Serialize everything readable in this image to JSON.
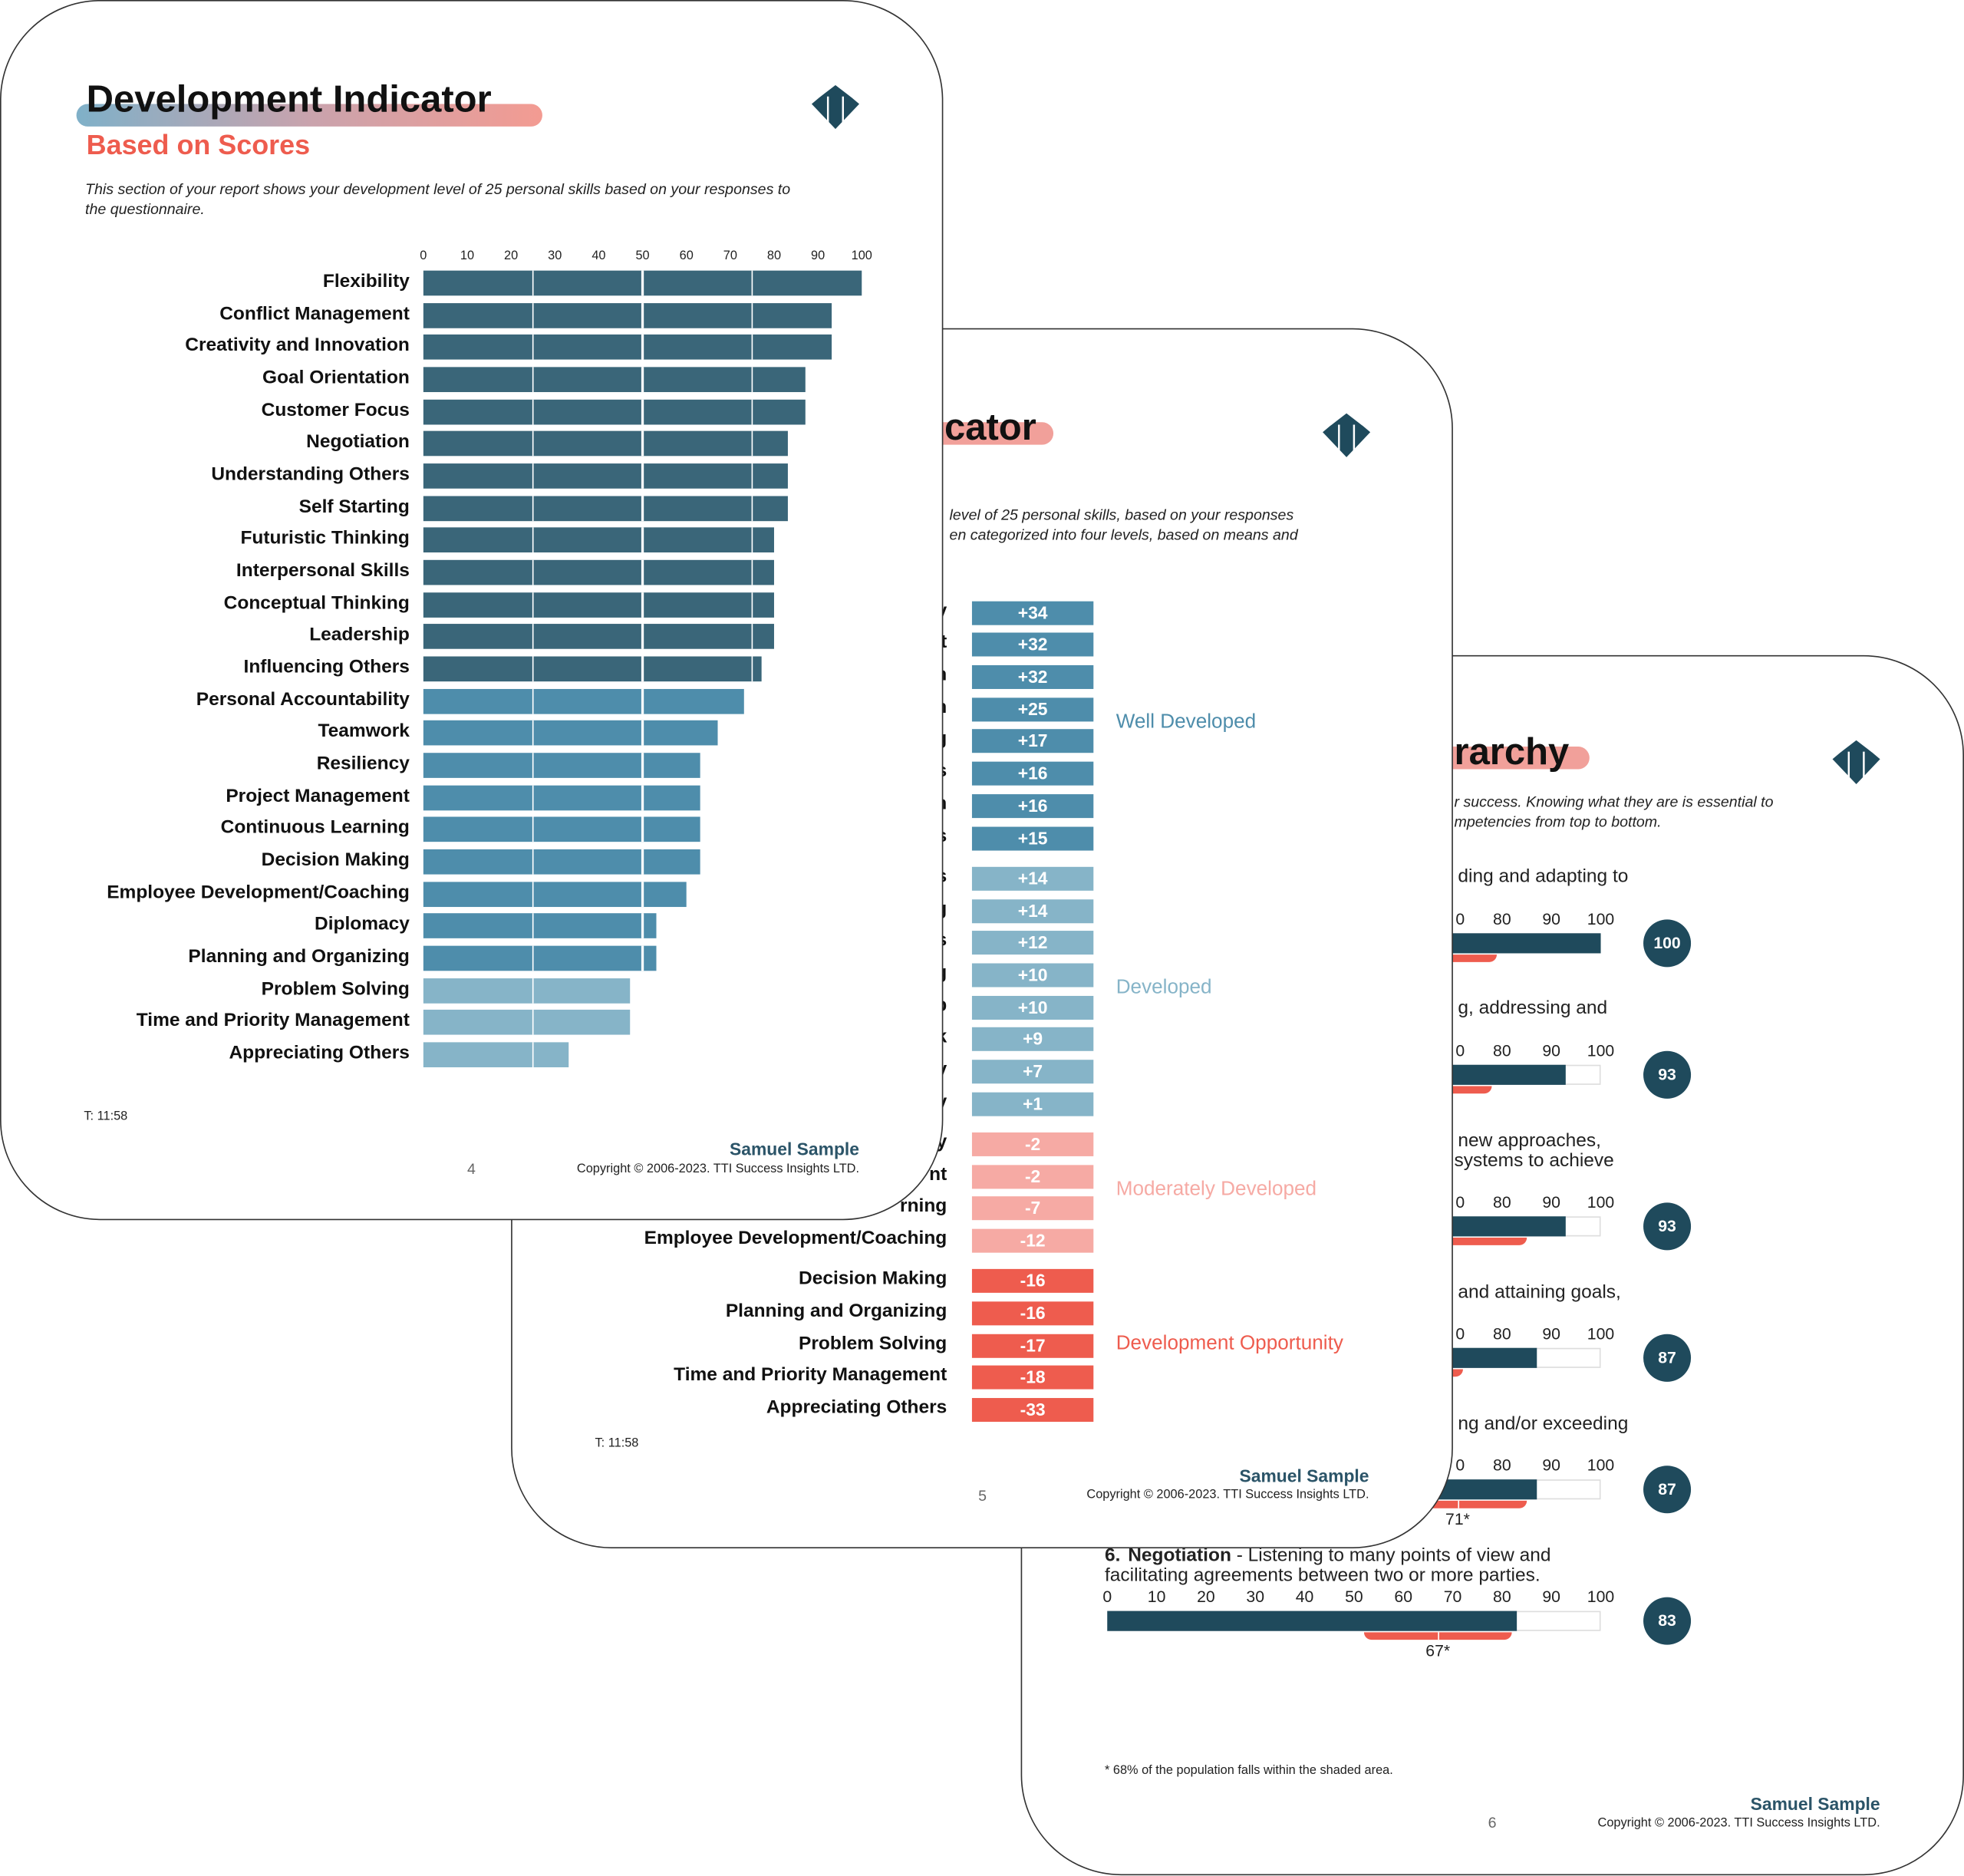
{
  "colors": {
    "dark": "#3a6679",
    "mid": "#4e8dab",
    "light": "#86b4c8",
    "accent_red": "#ee5c4e",
    "pink": "#f6aaa4",
    "navy": "#1f4a5c",
    "well_blue": "#4e8dab",
    "developed_blue": "#86b4c8"
  },
  "page4": {
    "title": "Development Indicator",
    "subtitle": "Based on Scores",
    "description_line1": "This section of your report shows your development level of 25 personal skills based on your responses to",
    "description_line2": "the questionnaire.",
    "timestamp": "T: 11:58",
    "owner": "Samuel Sample",
    "copyright": "Copyright © 2006-2023. TTI Success Insights LTD.",
    "page_number": "4",
    "logo_icon": "tti-diamond-logo"
  },
  "chart_data": [
    {
      "type": "bar",
      "orientation": "horizontal",
      "xlim": [
        0,
        100
      ],
      "ticks": [
        "0",
        "10",
        "20",
        "30",
        "40",
        "50",
        "60",
        "70",
        "80",
        "90",
        "100"
      ],
      "grid": true,
      "categories": [
        "Flexibility",
        "Conflict Management",
        "Creativity and Innovation",
        "Goal Orientation",
        "Customer Focus",
        "Negotiation",
        "Understanding Others",
        "Self Starting",
        "Futuristic Thinking",
        "Interpersonal Skills",
        "Conceptual Thinking",
        "Leadership",
        "Influencing Others",
        "Personal Accountability",
        "Teamwork",
        "Resiliency",
        "Project Management",
        "Continuous Learning",
        "Decision Making",
        "Employee Development/Coaching",
        "Diplomacy",
        "Planning and Organizing",
        "Problem Solving",
        "Time and Priority Management",
        "Appreciating Others"
      ],
      "values": [
        100,
        93,
        93,
        87,
        87,
        83,
        83,
        83,
        80,
        80,
        80,
        80,
        77,
        73,
        67,
        63,
        63,
        63,
        63,
        60,
        53,
        53,
        47,
        47,
        33
      ],
      "shade": [
        "dark",
        "dark",
        "dark",
        "dark",
        "dark",
        "dark",
        "dark",
        "dark",
        "dark",
        "dark",
        "dark",
        "dark",
        "dark",
        "mid",
        "mid",
        "mid",
        "mid",
        "mid",
        "mid",
        "mid",
        "mid",
        "mid",
        "light",
        "light",
        "light"
      ]
    },
    {
      "type": "bar",
      "label_fragments": [
        "y",
        "t",
        "n",
        "n",
        "g",
        "s",
        "n",
        "s",
        "s",
        "g",
        "s",
        "g",
        "p",
        "k",
        "y",
        "y",
        "y",
        "nt",
        "rning",
        "Employee Development/Coaching",
        "Decision Making",
        "Planning and Organizing",
        "Problem Solving",
        "Time and Priority Management",
        "Appreciating Others"
      ],
      "value_labels": [
        "+34",
        "+32",
        "+32",
        "+25",
        "+17",
        "+16",
        "+16",
        "+15",
        "+14",
        "+14",
        "+12",
        "+10",
        "+10",
        "+9",
        "+7",
        "+1",
        "-2",
        "-2",
        "-7",
        "-12",
        "-16",
        "-16",
        "-17",
        "-18",
        "-33"
      ],
      "groups": [
        {
          "name": "Well Developed",
          "count": 8,
          "color": "#4e8dab"
        },
        {
          "name": "Developed",
          "count": 8,
          "color": "#86b4c8"
        },
        {
          "name": "Moderately Developed",
          "count": 4,
          "color": "#f6aaa4"
        },
        {
          "name": "Development Opportunity",
          "count": 5,
          "color": "#ee5c4e"
        }
      ]
    },
    {
      "type": "bar",
      "xlim": [
        0,
        100
      ],
      "ticks_full": [
        "0",
        "10",
        "20",
        "30",
        "40",
        "50",
        "60",
        "70",
        "80",
        "90",
        "100"
      ],
      "ticks_partial": [
        "0",
        "80",
        "90",
        "100"
      ],
      "rows": [
        {
          "text_fragment": "ding and adapting to",
          "score": 100,
          "range": [
            40,
            79
          ]
        },
        {
          "text_fragment": "g, addressing and",
          "score": 93,
          "range": [
            40,
            78
          ]
        },
        {
          "text_fragment": "new approaches,",
          "text_fragment2": "systems to achieve",
          "score": 93,
          "range": [
            45,
            85
          ]
        },
        {
          "text_fragment": "and attaining goals,",
          "score": 87,
          "range": [
            40,
            72
          ]
        },
        {
          "text_fragment": "ng and/or exceeding",
          "score": 87,
          "range": [
            57,
            85
          ],
          "mean_label": "71*"
        },
        {
          "number": "6.",
          "name": "Negotiation",
          "description_line1": " - Listening to many points of view and",
          "description_line2": "facilitating agreements between two or more parties.",
          "score": 83,
          "range": [
            52,
            82
          ],
          "mean_label": "67*"
        }
      ]
    }
  ],
  "page5": {
    "title_fragment": "cator",
    "description_line1": "level of 25 personal skills, based on your responses",
    "description_line2": "en categorized into four levels, based on means and",
    "timestamp": "T: 11:58",
    "owner": "Samuel Sample",
    "copyright": "Copyright © 2006-2023. TTI Success Insights LTD.",
    "page_number": "5"
  },
  "page6": {
    "title_fragment": "rarchy",
    "description_line1": "r success.  Knowing what they are is essential to",
    "description_line2": "mpetencies from top to bottom.",
    "footnote": "* 68% of the population falls within the shaded area.",
    "owner": "Samuel Sample",
    "copyright": "Copyright © 2006-2023. TTI Success Insights LTD.",
    "page_number": "6"
  }
}
